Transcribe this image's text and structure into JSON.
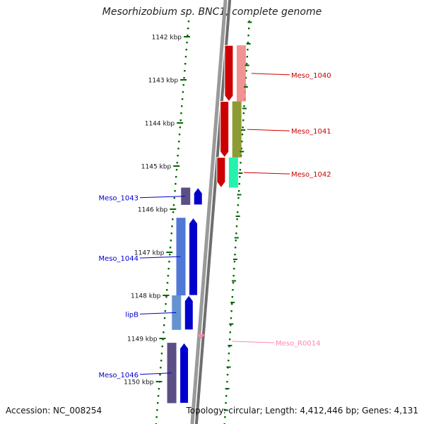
{
  "title": "Mesorhizobium sp. BNC1, complete genome",
  "footer": {
    "accession_label": "Accession:",
    "accession": "NC_008254",
    "topology_label": "Topology:",
    "topology": "circular;",
    "length_label": "Length:",
    "length": "4,412,446 bp;",
    "genes_label": "Genes:",
    "genes": "4,131"
  },
  "scale_ticks": [
    {
      "kbp": 1142,
      "label": "1142 kbp"
    },
    {
      "kbp": 1143,
      "label": "1143 kbp"
    },
    {
      "kbp": 1144,
      "label": "1144 kbp"
    },
    {
      "kbp": 1145,
      "label": "1145 kbp"
    },
    {
      "kbp": 1146,
      "label": "1146 kbp"
    },
    {
      "kbp": 1147,
      "label": "1147 kbp"
    },
    {
      "kbp": 1148,
      "label": "1148 kbp"
    },
    {
      "kbp": 1149,
      "label": "1149 kbp"
    },
    {
      "kbp": 1150,
      "label": "1150 kbp"
    }
  ],
  "genes": [
    {
      "name": "Meso_1040",
      "strand": "reverse",
      "start_kbp": 1142.2,
      "end_kbp": 1143.5,
      "color": "#cc0000"
    },
    {
      "name": "Meso_1041",
      "strand": "reverse",
      "start_kbp": 1143.5,
      "end_kbp": 1144.8,
      "color": "#cc0000"
    },
    {
      "name": "Meso_1042",
      "strand": "reverse",
      "start_kbp": 1144.8,
      "end_kbp": 1145.5,
      "color": "#cc0000"
    },
    {
      "name": "Meso_1043",
      "strand": "forward",
      "start_kbp": 1145.5,
      "end_kbp": 1145.9,
      "color": "#0000cc"
    },
    {
      "name": "Meso_1044",
      "strand": "forward",
      "start_kbp": 1146.2,
      "end_kbp": 1148.0,
      "color": "#0000cc"
    },
    {
      "name": "lipB",
      "strand": "forward",
      "start_kbp": 1148.0,
      "end_kbp": 1148.8,
      "color": "#0000cc"
    },
    {
      "name": "Meso_R0014",
      "strand": "forward",
      "start_kbp": 1148.95,
      "end_kbp": 1149.05,
      "color": "#ff88aa"
    },
    {
      "name": "Meso_1046",
      "strand": "forward",
      "start_kbp": 1149.1,
      "end_kbp": 1150.5,
      "color": "#0000cc"
    }
  ],
  "colors": {
    "backbone": "#777777",
    "tick": "#006600",
    "reverse_label": "#cc0000",
    "forward_label": "#0000cc",
    "rna_label": "#ff88aa"
  }
}
